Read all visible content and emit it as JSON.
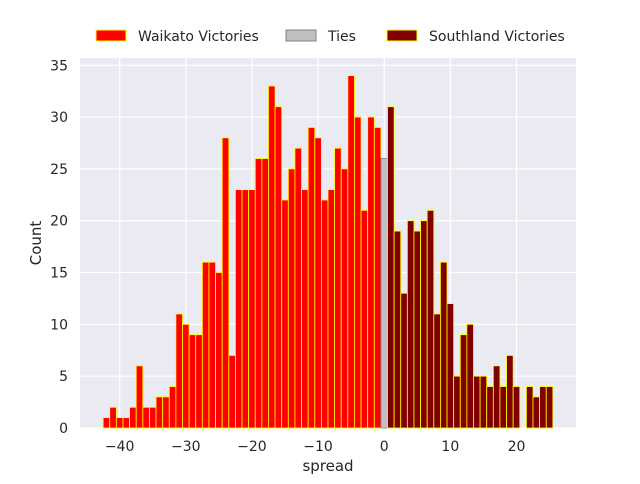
{
  "chart_data": {
    "type": "bar",
    "xlabel": "spread",
    "ylabel": "Count",
    "xlim": [
      -46,
      29
    ],
    "ylim": [
      0,
      35.7
    ],
    "xticks": [
      -40,
      -30,
      -20,
      -10,
      0,
      10,
      20
    ],
    "yticks": [
      0,
      5,
      10,
      15,
      20,
      25,
      30,
      35
    ],
    "grid": true,
    "legend": "top",
    "bin_width": 1,
    "series": [
      {
        "name": "Waikato Victories",
        "color": "#ff0000",
        "edgecolor": "#ffff00",
        "x": [
          -42,
          -41,
          -40,
          -39,
          -38,
          -37,
          -36,
          -35,
          -34,
          -33,
          -32,
          -31,
          -30,
          -29,
          -28,
          -27,
          -26,
          -25,
          -24,
          -23,
          -22,
          -21,
          -20,
          -19,
          -18,
          -17,
          -16,
          -15,
          -14,
          -13,
          -12,
          -11,
          -10,
          -9,
          -8,
          -7,
          -6,
          -5,
          -4,
          -3,
          -2,
          -1
        ],
        "values": [
          1,
          2,
          1,
          1,
          2,
          6,
          2,
          2,
          3,
          3,
          4,
          11,
          10,
          9,
          9,
          16,
          16,
          15,
          28,
          7,
          23,
          23,
          23,
          26,
          26,
          33,
          31,
          22,
          25,
          27,
          23,
          29,
          28,
          22,
          23,
          27,
          25,
          34,
          30,
          21,
          30,
          29
        ]
      },
      {
        "name": "Ties",
        "color": "#c0c0c0",
        "edgecolor": "#808080",
        "x": [
          0
        ],
        "values": [
          26
        ]
      },
      {
        "name": "Southland Victories",
        "color": "#800000",
        "edgecolor": "#ffff00",
        "x": [
          1,
          2,
          3,
          4,
          5,
          6,
          7,
          8,
          9,
          10,
          11,
          12,
          13,
          14,
          15,
          16,
          17,
          18,
          19,
          20,
          21,
          22,
          23,
          24,
          25
        ],
        "values": [
          31,
          19,
          13,
          20,
          19,
          20,
          21,
          11,
          16,
          12,
          5,
          9,
          10,
          5,
          5,
          4,
          6,
          4,
          7,
          4,
          0,
          4,
          3,
          4,
          4
        ]
      }
    ]
  }
}
